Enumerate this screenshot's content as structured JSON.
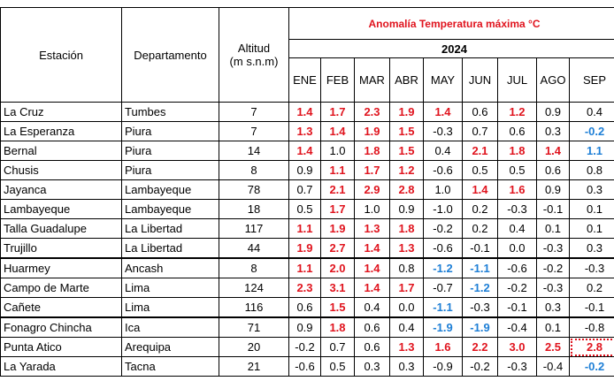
{
  "header": {
    "station": "Estación",
    "department": "Departamento",
    "altitude": "Altitud",
    "altitude_unit": "(m s.n.m)",
    "title": "Anomalía Temperatura máxima °C",
    "year": "2024",
    "months": [
      "ENE",
      "FEB",
      "MAR",
      "ABR",
      "MAY",
      "JUN",
      "JUL",
      "AGO",
      "SEP"
    ]
  },
  "rows": [
    {
      "station": "La Cruz",
      "department": "Tumbes",
      "altitude": 7,
      "values": [
        "1.4",
        "1.7",
        "2.3",
        "1.9",
        "1.4",
        "0.6",
        "1.2",
        "0.9",
        "0.4"
      ]
    },
    {
      "station": "La Esperanza",
      "department": "Piura",
      "altitude": 7,
      "values": [
        "1.3",
        "1.4",
        "1.9",
        "1.5",
        "-0.3",
        "0.7",
        "0.6",
        "0.3",
        "-0.2"
      ]
    },
    {
      "station": "Bernal",
      "department": "Piura",
      "altitude": 14,
      "values": [
        "1.4",
        "1.0",
        "1.8",
        "1.5",
        "0.4",
        "2.1",
        "1.8",
        "1.4",
        "1.1"
      ]
    },
    {
      "station": "Chusis",
      "department": "Piura",
      "altitude": 8,
      "values": [
        "0.9",
        "1.1",
        "1.7",
        "1.2",
        "-0.6",
        "0.5",
        "0.5",
        "0.6",
        "0.8"
      ]
    },
    {
      "station": "Jayanca",
      "department": "Lambayeque",
      "altitude": 78,
      "values": [
        "0.7",
        "2.1",
        "2.9",
        "2.8",
        "1.0",
        "1.4",
        "1.6",
        "0.9",
        "0.3"
      ]
    },
    {
      "station": "Lambayeque",
      "department": "Lambayeque",
      "altitude": 18,
      "values": [
        "0.5",
        "1.7",
        "1.0",
        "0.9",
        "-1.0",
        "0.2",
        "-0.3",
        "-0.1",
        "0.1"
      ]
    },
    {
      "station": "Talla Guadalupe",
      "department": "La Libertad",
      "altitude": 117,
      "values": [
        "1.1",
        "1.9",
        "1.3",
        "1.8",
        "-0.2",
        "0.2",
        "0.4",
        "0.1",
        "0.1"
      ]
    },
    {
      "station": "Trujillo",
      "department": "La Libertad",
      "altitude": 44,
      "values": [
        "1.9",
        "2.7",
        "1.4",
        "1.3",
        "-0.6",
        "-0.1",
        "0.0",
        "-0.3",
        "0.3"
      ]
    },
    {
      "station": "Huarmey",
      "department": "Ancash",
      "altitude": 8,
      "values": [
        "1.1",
        "2.0",
        "1.4",
        "0.8",
        "-1.2",
        "-1.1",
        "-0.6",
        "-0.2",
        "-0.3"
      ]
    },
    {
      "station": "Campo de Marte",
      "department": "Lima",
      "altitude": 124,
      "values": [
        "2.3",
        "3.1",
        "1.4",
        "1.7",
        "-0.7",
        "-1.2",
        "-0.2",
        "-0.3",
        "0.2"
      ]
    },
    {
      "station": "Cañete",
      "department": "Lima",
      "altitude": 116,
      "values": [
        "0.6",
        "1.5",
        "0.4",
        "0.0",
        "-1.1",
        "-0.3",
        "-0.1",
        "0.3",
        "-0.1"
      ]
    },
    {
      "station": "Fonagro Chincha",
      "department": "Ica",
      "altitude": 71,
      "values": [
        "0.9",
        "1.8",
        "0.6",
        "0.4",
        "-1.9",
        "-1.9",
        "-0.4",
        "0.1",
        "-0.8"
      ]
    },
    {
      "station": "Punta Atico",
      "department": "Arequipa",
      "altitude": 20,
      "values": [
        "-0.2",
        "0.7",
        "0.6",
        "1.3",
        "1.6",
        "2.2",
        "3.0",
        "2.5",
        "2.8"
      ]
    },
    {
      "station": "La Yarada",
      "department": "Tacna",
      "altitude": 21,
      "values": [
        "-0.6",
        "0.5",
        "0.3",
        "0.3",
        "-0.9",
        "-0.2",
        "-0.3",
        "-0.4",
        "-0.2"
      ]
    }
  ]
}
